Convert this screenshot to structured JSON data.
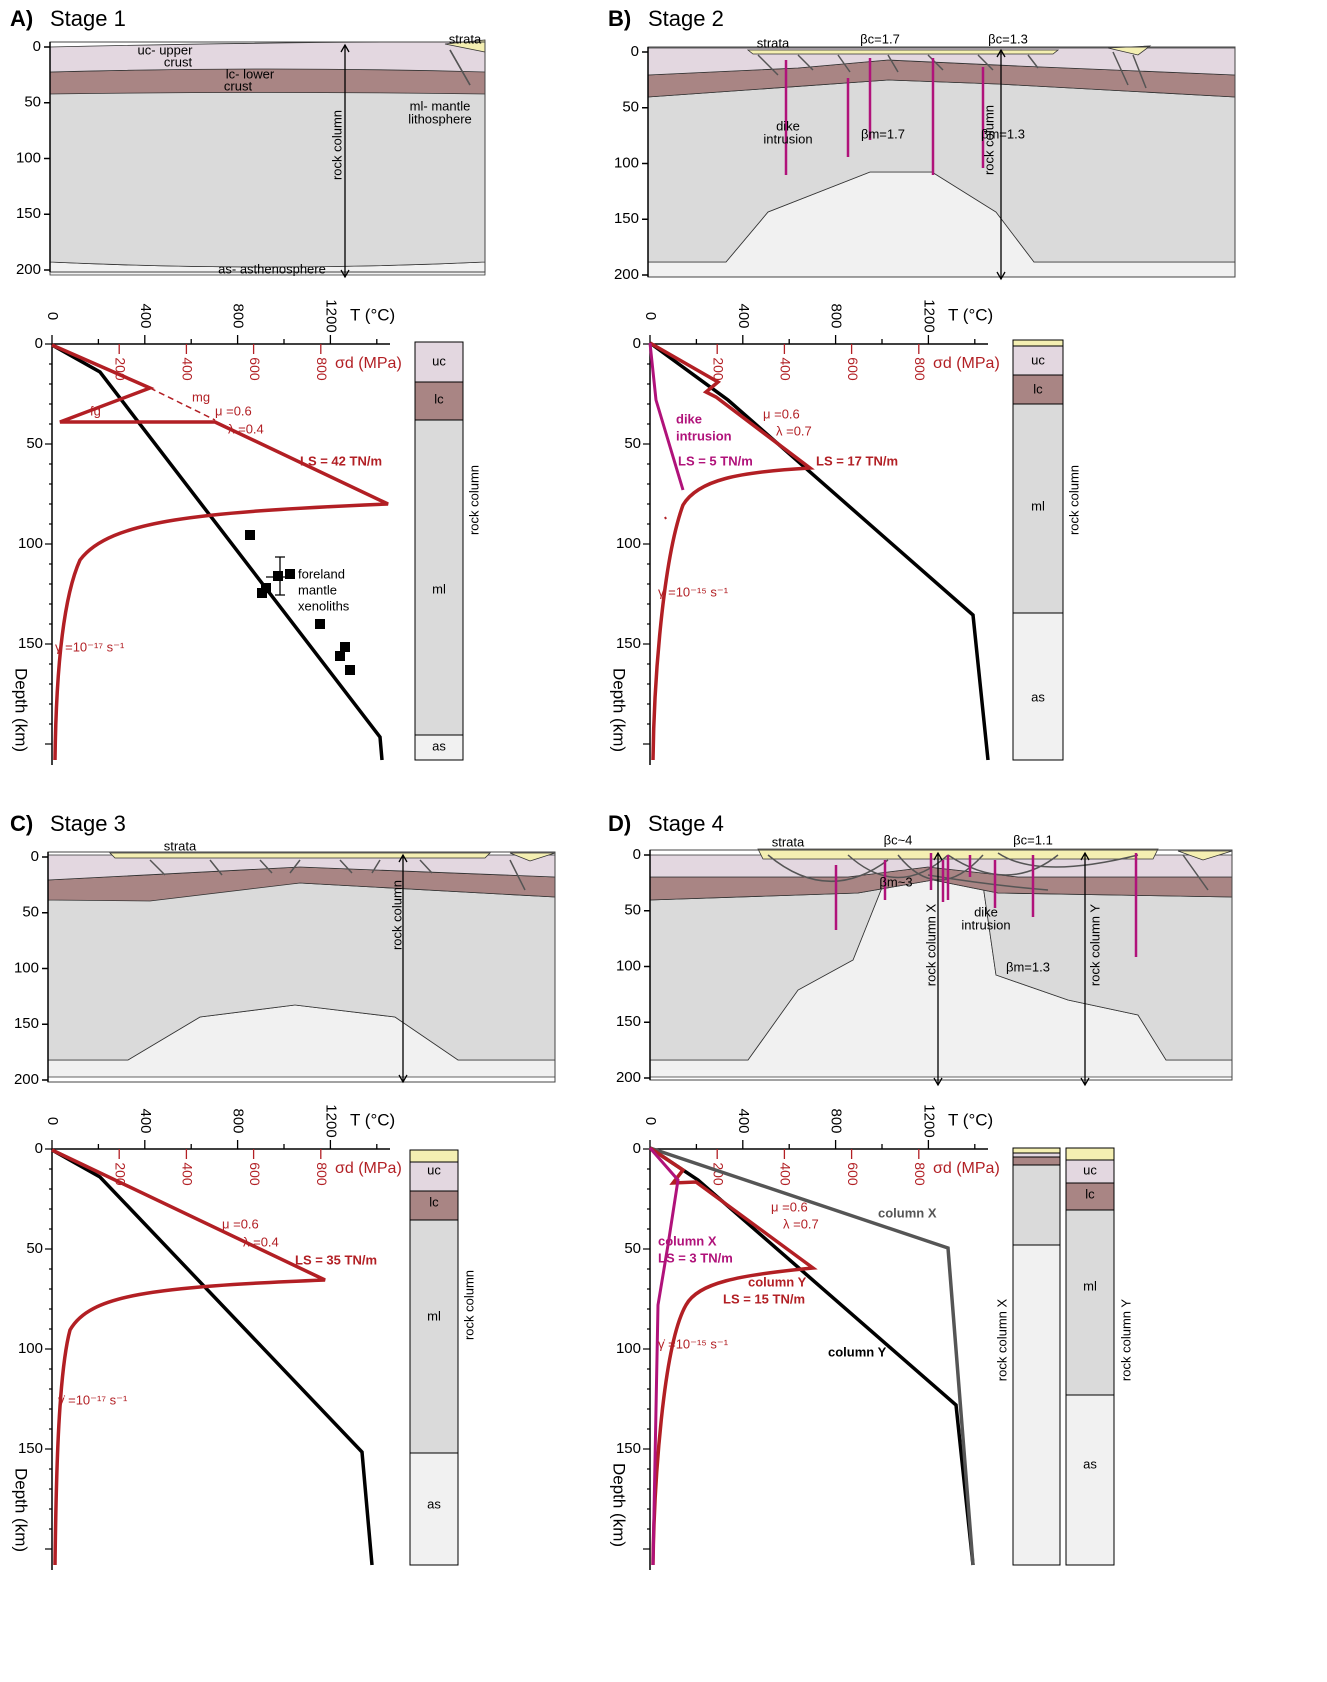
{
  "axis": {
    "section_ticks": [
      "0",
      "50",
      "100",
      "150",
      "200"
    ],
    "t_label": "T (°C)",
    "t_ticks": [
      "0",
      "400",
      "800",
      "1200"
    ],
    "s_label": "σd (MPa)",
    "s_ticks": [
      "200",
      "400",
      "600",
      "800"
    ],
    "depth_ticks": [
      "0",
      "50",
      "100",
      "150"
    ],
    "depth_label": "Depth (km)"
  },
  "panels": [
    {
      "label": "A)",
      "title": "Stage 1",
      "section_texts": [
        "strata",
        "uc- upper",
        "crust",
        "lc- lower",
        "crust",
        "ml- mantle",
        "lithosphere",
        "rock column",
        "as- asthenosphere"
      ],
      "plot_texts": [
        "mg",
        "fg",
        "μ =0.6",
        "λ =0.4",
        "LS = 42 TN/m",
        "foreland",
        "mantle",
        "xenoliths",
        "γ̇ =10⁻¹⁷ s⁻¹"
      ],
      "column_texts": [
        "uc",
        "lc",
        "ml",
        "as",
        "rock column"
      ]
    },
    {
      "label": "B)",
      "title": "Stage 2",
      "section_texts": [
        "strata",
        "βc=1.7",
        "βc=1.3",
        "dike",
        "intrusion",
        "βm=1.7",
        "rock column",
        "βm=1.3"
      ],
      "plot_texts": [
        "dike",
        "intrusion",
        "LS = 5 TN/m",
        "μ =0.6",
        "λ =0.7",
        "LS = 17 TN/m",
        "γ =10⁻¹⁵ s⁻¹"
      ],
      "column_texts": [
        "uc",
        "lc",
        "ml",
        "as",
        "rock column"
      ]
    },
    {
      "label": "C)",
      "title": "Stage 3",
      "section_texts": [
        "strata",
        "rock column"
      ],
      "plot_texts": [
        "μ =0.6",
        "λ =0.4",
        "LS = 35 TN/m",
        "γ̇ =10⁻¹⁷ s⁻¹"
      ],
      "column_texts": [
        "uc",
        "lc",
        "ml",
        "as",
        "rock column"
      ]
    },
    {
      "label": "D)",
      "title": "Stage 4",
      "section_texts": [
        "strata",
        "βc~4",
        "βc=1.1",
        "βm~3",
        "dike",
        "intrusion",
        "rock column X",
        "βm=1.3",
        "rock column Y"
      ],
      "plot_texts": [
        "column X",
        "μ =0.6",
        "λ =0.7",
        "column X",
        "LS = 3 TN/m",
        "column Y",
        "LS = 15 TN/m",
        "γ̇ =10⁻¹⁵ s⁻¹",
        "column Y"
      ],
      "column_texts": [
        "rock column X",
        "uc",
        "lc",
        "ml",
        "as",
        "rock column Y"
      ]
    }
  ]
}
